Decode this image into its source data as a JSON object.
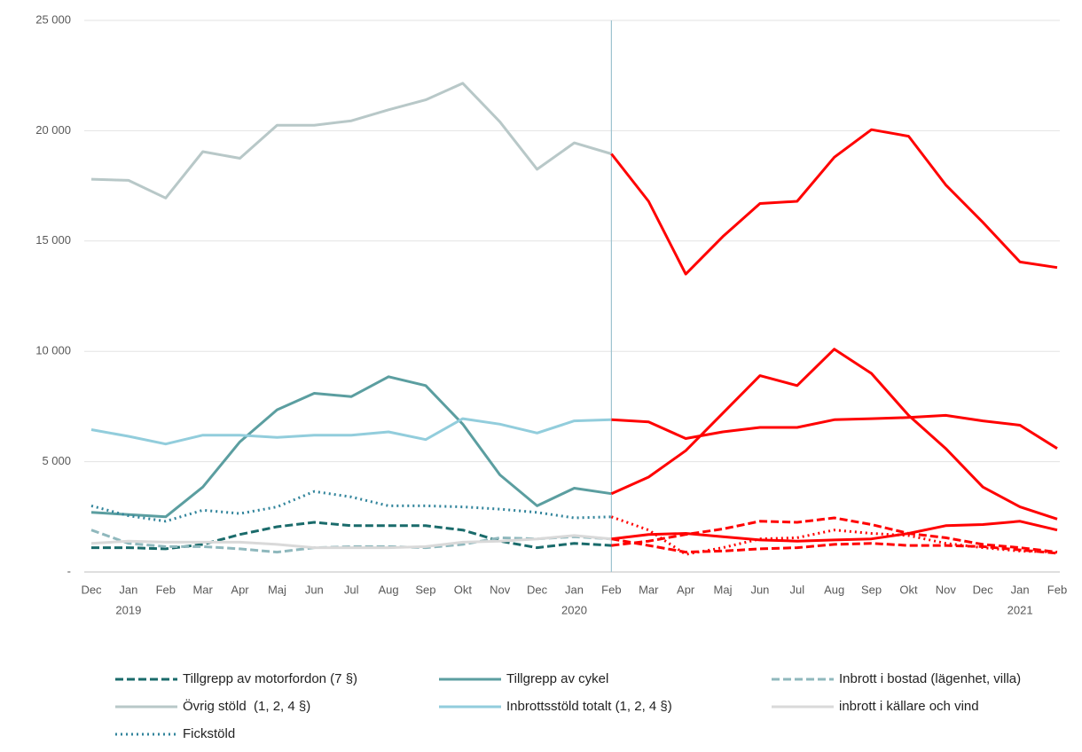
{
  "chart_data": {
    "type": "line",
    "categories": [
      "Dec",
      "Jan",
      "Feb",
      "Mar",
      "Apr",
      "Maj",
      "Jun",
      "Jul",
      "Aug",
      "Sep",
      "Okt",
      "Nov",
      "Dec",
      "Jan",
      "Feb",
      "Mar",
      "Apr",
      "Maj",
      "Jun",
      "Jul",
      "Aug",
      "Sep",
      "Okt",
      "Nov",
      "Dec",
      "Jan",
      "Feb"
    ],
    "year_labels": [
      {
        "category": 1,
        "label": "2019"
      },
      {
        "category": 13,
        "label": "2020"
      },
      {
        "category": 25,
        "label": "2021"
      }
    ],
    "ylim": [
      0,
      25000
    ],
    "yticks": [
      {
        "value": 0,
        "label": "-"
      },
      {
        "value": 5000,
        "label": "5 000"
      },
      {
        "value": 10000,
        "label": "10 000"
      },
      {
        "value": 15000,
        "label": "15 000"
      },
      {
        "value": 20000,
        "label": "20 000"
      },
      {
        "value": 25000,
        "label": "25 000"
      }
    ],
    "grid": true,
    "divider_category": 14,
    "divider_color": "#9dc3d0",
    "highlight": {
      "from_category": 14,
      "color": "#ff0000"
    },
    "series": [
      {
        "name": "Tillgrepp av motorfordon (7 §)",
        "color": "#1a6b6b",
        "dash": "dashed",
        "values": [
          1100,
          1100,
          1050,
          1250,
          1700,
          2050,
          2250,
          2100,
          2100,
          2100,
          1900,
          1400,
          1100,
          1300,
          1200,
          1400,
          1700,
          1950,
          2300,
          2250,
          2450,
          2150,
          1750,
          1550,
          1250,
          1100,
          900
        ]
      },
      {
        "name": "Tillgrepp av cykel",
        "color": "#5b9ea0",
        "dash": "solid",
        "values": [
          2700,
          2600,
          2500,
          3850,
          5900,
          7350,
          8100,
          7950,
          8850,
          8450,
          6700,
          4400,
          3000,
          3800,
          3550,
          4300,
          5500,
          7200,
          8900,
          8450,
          10100,
          9000,
          7100,
          5600,
          3850,
          2950,
          2400
        ]
      },
      {
        "name": "Inbrott i bostad (lägenhet, villa)",
        "color": "#8fb8bd",
        "dash": "dashed",
        "values": [
          1900,
          1300,
          1150,
          1150,
          1050,
          900,
          1100,
          1150,
          1150,
          1100,
          1250,
          1550,
          1500,
          1600,
          1500,
          1200,
          900,
          950,
          1050,
          1100,
          1250,
          1300,
          1200,
          1200,
          1150,
          1000,
          850
        ]
      },
      {
        "name": "Övrig stöld  (1, 2, 4 §)",
        "color": "#b8c8c8",
        "dash": "solid",
        "values": [
          17800,
          17750,
          16950,
          19050,
          18750,
          20250,
          20250,
          20450,
          20950,
          21400,
          22150,
          20400,
          18250,
          19450,
          18950,
          16800,
          13500,
          15200,
          16700,
          16800,
          18800,
          20050,
          19750,
          17550,
          15850,
          14050,
          13800
        ]
      },
      {
        "name": "Inbrottsstöld totalt (1, 2, 4 §)",
        "color": "#92cddc",
        "dash": "solid",
        "values": [
          6450,
          6150,
          5800,
          6200,
          6200,
          6100,
          6200,
          6200,
          6350,
          6000,
          6950,
          6700,
          6300,
          6850,
          6900,
          6800,
          6050,
          6350,
          6550,
          6550,
          6900,
          6950,
          7000,
          7100,
          6850,
          6650,
          5600
        ]
      },
      {
        "name": "inbrott i källare och vind",
        "color": "#d9d9d9",
        "dash": "solid",
        "values": [
          1300,
          1400,
          1350,
          1350,
          1350,
          1250,
          1100,
          1100,
          1100,
          1150,
          1350,
          1400,
          1500,
          1650,
          1500,
          1700,
          1750,
          1600,
          1450,
          1400,
          1450,
          1500,
          1750,
          2100,
          2150,
          2300,
          1900
        ]
      },
      {
        "name": "Fickstöld",
        "color": "#31849b",
        "dash": "dotted",
        "values": [
          3000,
          2550,
          2300,
          2800,
          2650,
          2950,
          3650,
          3400,
          3000,
          3000,
          2950,
          2850,
          2700,
          2450,
          2500,
          1900,
          800,
          1100,
          1500,
          1550,
          1900,
          1750,
          1650,
          1300,
          1100,
          950,
          900
        ]
      }
    ]
  }
}
